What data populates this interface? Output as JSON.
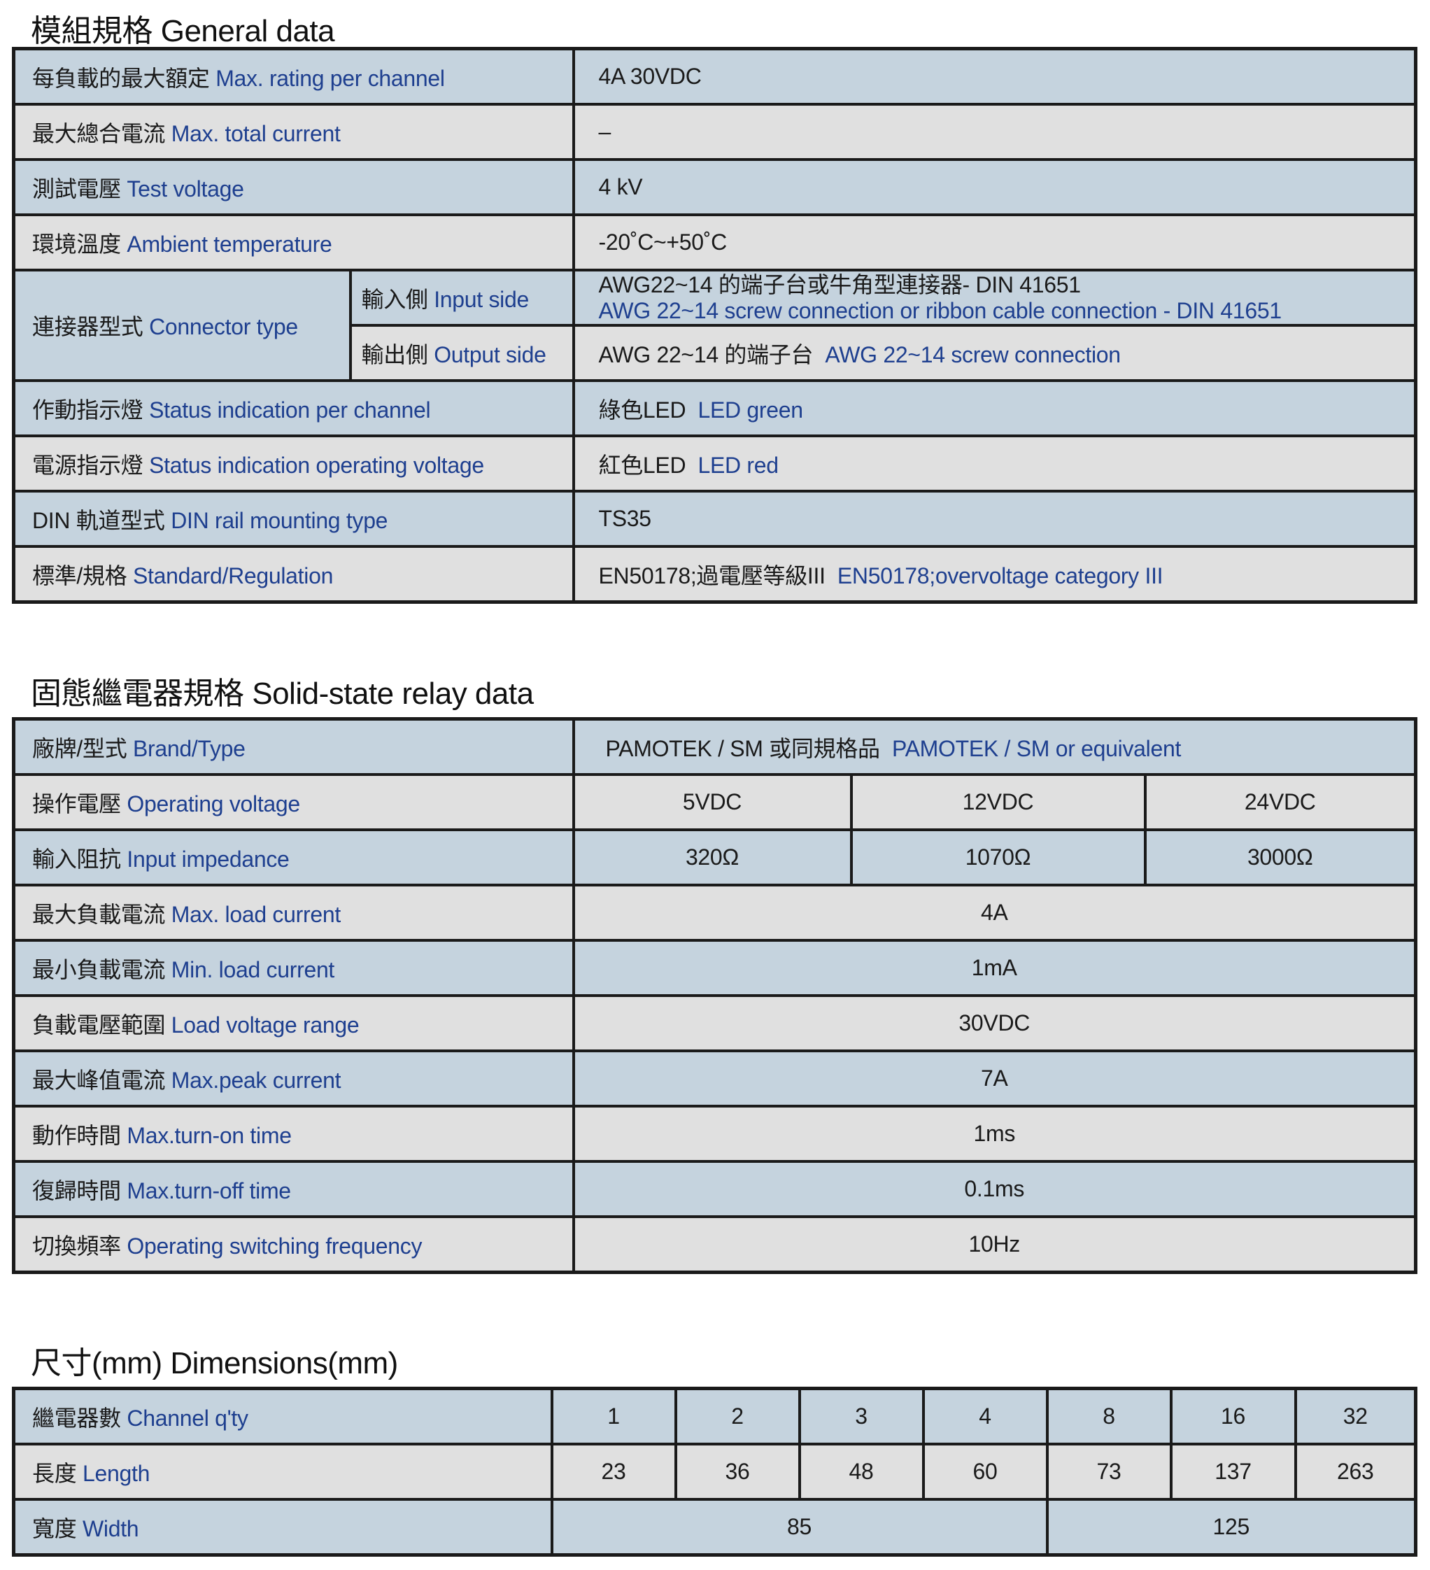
{
  "general": {
    "title": "模組規格 General data",
    "rows": [
      {
        "zh": "每負載的最大額定",
        "en": "Max. rating per channel",
        "value": "4A 30VDC"
      },
      {
        "zh": "最大總合電流",
        "en": "Max. total current",
        "value": "–"
      },
      {
        "zh": "測試電壓",
        "en": "Test voltage",
        "value": "4 kV"
      },
      {
        "zh": "環境溫度",
        "en": "Ambient  temperature",
        "value": "-20˚C~+50˚C"
      }
    ],
    "connector": {
      "zh": "連接器型式",
      "en": "Connector  type",
      "input": {
        "zh": "輸入側",
        "en": "Input side",
        "value_zh": "AWG22~14 的端子台或牛角型連接器- DIN 41651",
        "value_en": "AWG 22~14 screw connection or ribbon cable connection - DIN 41651"
      },
      "output": {
        "zh": "輸出側",
        "en": "Output side",
        "value_zh": "AWG 22~14 的端子台",
        "value_en": "AWG 22~14 screw connection"
      }
    },
    "rows2": [
      {
        "zh": "作動指示燈",
        "en": "Status indication per channel",
        "value_zh": "綠色LED",
        "value_en": "LED green"
      },
      {
        "zh": "電源指示燈",
        "en": "Status indication operating voltage",
        "value_zh": "紅色LED",
        "value_en": "LED red"
      },
      {
        "zh": "DIN 軌道型式",
        "en": "DIN rail mounting type",
        "value_zh": "TS35",
        "value_en": ""
      },
      {
        "zh": "標準/規格",
        "en": "Standard/Regulation",
        "value_zh": "EN50178;過電壓等級III",
        "value_en": "EN50178;overvoltage category III"
      }
    ]
  },
  "ssr": {
    "title": "固態繼電器規格 Solid-state relay data",
    "brand": {
      "zh": "廠牌/型式",
      "en": "Brand/Type",
      "value_zh": "PAMOTEK / SM 或同規格品",
      "value_en": "PAMOTEK / SM  or equivalent"
    },
    "voltage": {
      "zh": "操作電壓",
      "en": "Operating voltage",
      "values": [
        "5VDC",
        "12VDC",
        "24VDC"
      ]
    },
    "impedance": {
      "zh": "輸入阻抗",
      "en": "Input impedance",
      "values": [
        "320Ω",
        "1070Ω",
        "3000Ω"
      ]
    },
    "rows": [
      {
        "zh": "最大負載電流",
        "en": "Max. load current",
        "value": "4A"
      },
      {
        "zh": "最小負載電流",
        "en": "Min. load current",
        "value": "1mA"
      },
      {
        "zh": "負載電壓範圍",
        "en": "Load voltage range",
        "value": "30VDC"
      },
      {
        "zh": "最大峰值電流",
        "en": "Max.peak current",
        "value": "7A"
      },
      {
        "zh": "動作時間",
        "en": "Max.turn-on time",
        "value": "1ms"
      },
      {
        "zh": "復歸時間",
        "en": "Max.turn-off time",
        "value": "0.1ms"
      },
      {
        "zh": "切換頻率",
        "en": "Operating switching frequency",
        "value": "10Hz"
      }
    ]
  },
  "dims": {
    "title": "尺寸(mm)  Dimensions(mm)",
    "channel": {
      "zh": "繼電器數",
      "en": "Channel q'ty",
      "values": [
        "1",
        "2",
        "3",
        "4",
        "8",
        "16",
        "32"
      ]
    },
    "length": {
      "zh": "長度",
      "en": "Length",
      "values": [
        "23",
        "36",
        "48",
        "60",
        "73",
        "137",
        "263"
      ]
    },
    "width": {
      "zh": "寬度",
      "en": "Width",
      "values": [
        "85",
        "125"
      ]
    }
  },
  "colors": {
    "row_blue": "#c5d3de",
    "row_grey": "#e0e0e0",
    "english_text": "#1e3f8f",
    "border": "#1a1a1a"
  }
}
